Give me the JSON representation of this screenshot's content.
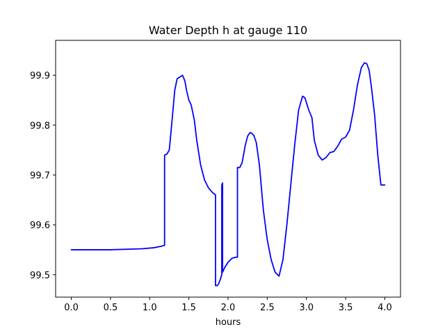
{
  "chart_data": {
    "type": "line",
    "title": "Water Depth h at gauge 110",
    "xlabel": "hours",
    "ylabel": "",
    "xlim": [
      -0.2,
      4.2
    ],
    "ylim": [
      99.455,
      99.97
    ],
    "xticks": [
      0.0,
      0.5,
      1.0,
      1.5,
      2.0,
      2.5,
      3.0,
      3.5,
      4.0
    ],
    "xtick_labels": [
      "0.0",
      "0.5",
      "1.0",
      "1.5",
      "2.0",
      "2.5",
      "3.0",
      "3.5",
      "4.0"
    ],
    "yticks": [
      99.5,
      99.6,
      99.7,
      99.8,
      99.9
    ],
    "ytick_labels": [
      "99.5",
      "99.6",
      "99.7",
      "99.8",
      "99.9"
    ],
    "grid": false,
    "series": [
      {
        "color": "#0000ff",
        "x": [
          0.0,
          0.5,
          0.9,
          1.05,
          1.15,
          1.19,
          1.19,
          1.22,
          1.25,
          1.28,
          1.32,
          1.35,
          1.38,
          1.42,
          1.45,
          1.47,
          1.5,
          1.53,
          1.57,
          1.6,
          1.65,
          1.7,
          1.75,
          1.8,
          1.84,
          1.84,
          1.86,
          1.88,
          1.9,
          1.92,
          1.92,
          1.93,
          1.93,
          1.96,
          2.0,
          2.05,
          2.1,
          2.12,
          2.12,
          2.15,
          2.18,
          2.22,
          2.25,
          2.28,
          2.3,
          2.33,
          2.36,
          2.4,
          2.45,
          2.5,
          2.55,
          2.6,
          2.65,
          2.7,
          2.75,
          2.8,
          2.85,
          2.9,
          2.95,
          2.98,
          3.0,
          3.03,
          3.07,
          3.1,
          3.15,
          3.2,
          3.25,
          3.3,
          3.35,
          3.4,
          3.45,
          3.5,
          3.55,
          3.6,
          3.65,
          3.7,
          3.74,
          3.77,
          3.8,
          3.83,
          3.87,
          3.91,
          3.95,
          4.0
        ],
        "y": [
          99.55,
          99.55,
          99.552,
          99.554,
          99.557,
          99.559,
          99.74,
          99.742,
          99.75,
          99.8,
          99.87,
          99.893,
          99.896,
          99.9,
          99.888,
          99.87,
          99.85,
          99.84,
          99.81,
          99.77,
          99.72,
          99.69,
          99.674,
          99.665,
          99.66,
          99.478,
          99.478,
          99.482,
          99.49,
          99.5,
          99.68,
          99.684,
          99.505,
          99.515,
          99.525,
          99.533,
          99.535,
          99.535,
          99.715,
          99.715,
          99.725,
          99.76,
          99.778,
          99.785,
          99.784,
          99.779,
          99.765,
          99.72,
          99.63,
          99.57,
          99.53,
          99.505,
          99.497,
          99.53,
          99.6,
          99.68,
          99.76,
          99.83,
          99.858,
          99.855,
          99.845,
          99.83,
          99.815,
          99.77,
          99.74,
          99.73,
          99.735,
          99.745,
          99.747,
          99.758,
          99.772,
          99.776,
          99.79,
          99.83,
          99.88,
          99.915,
          99.925,
          99.923,
          99.91,
          99.875,
          99.82,
          99.74,
          99.68,
          99.68
        ]
      }
    ]
  }
}
